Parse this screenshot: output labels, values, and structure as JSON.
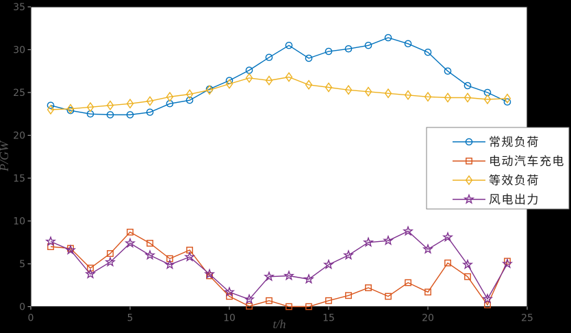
{
  "figure": {
    "background": "#000000",
    "plot_background": "#ffffff",
    "spine_color": "#1a1a1a",
    "tick_mark_color": "#999999",
    "tick_label_color": "#646464",
    "axis_label_color": "#585858",
    "legend_border_color": "#808080",
    "legend_background": "#ffffff"
  },
  "chart_data": {
    "type": "line",
    "title": "",
    "xlabel": "t/h",
    "ylabel": "P/GW",
    "xlim": [
      0,
      25
    ],
    "ylim": [
      0,
      35
    ],
    "x_ticks": [
      0,
      5,
      10,
      15,
      20,
      25
    ],
    "y_ticks": [
      0,
      5,
      10,
      15,
      20,
      25,
      30,
      35
    ],
    "grid": false,
    "legend_position": "right-middle",
    "x": [
      1,
      2,
      3,
      4,
      5,
      6,
      7,
      8,
      9,
      10,
      11,
      12,
      13,
      14,
      15,
      16,
      17,
      18,
      19,
      20,
      21,
      22,
      23,
      24
    ],
    "series": [
      {
        "name": "常规负荷",
        "color": "#0072BD",
        "marker": "circle",
        "values": [
          23.5,
          22.9,
          22.5,
          22.4,
          22.4,
          22.7,
          23.7,
          24.1,
          25.4,
          26.4,
          27.6,
          29.1,
          30.5,
          29.0,
          29.8,
          30.1,
          30.5,
          31.4,
          30.7,
          29.7,
          27.5,
          25.8,
          25.0,
          23.9
        ]
      },
      {
        "name": "电动汽车充电",
        "color": "#D95319",
        "marker": "square",
        "values": [
          7.0,
          6.8,
          4.5,
          6.2,
          8.7,
          7.4,
          5.6,
          6.6,
          3.6,
          1.2,
          0.05,
          0.7,
          0.0,
          0.0,
          0.7,
          1.3,
          2.2,
          1.2,
          2.8,
          1.7,
          5.1,
          3.5,
          0.2,
          5.3
        ]
      },
      {
        "name": "等效负荷",
        "color": "#EDB120",
        "marker": "diamond",
        "values": [
          23.0,
          23.1,
          23.3,
          23.5,
          23.7,
          24.0,
          24.5,
          24.8,
          25.3,
          26.0,
          26.7,
          26.4,
          26.8,
          25.9,
          25.6,
          25.3,
          25.1,
          24.9,
          24.7,
          24.5,
          24.4,
          24.4,
          24.2,
          24.3
        ]
      },
      {
        "name": "风电出力",
        "color": "#7E2F8E",
        "marker": "star",
        "values": [
          7.6,
          6.6,
          3.8,
          5.2,
          7.4,
          6.0,
          4.9,
          5.8,
          3.8,
          1.7,
          0.85,
          3.5,
          3.6,
          3.2,
          4.9,
          6.0,
          7.5,
          7.7,
          8.8,
          6.7,
          8.1,
          4.9,
          0.9,
          5.0
        ]
      }
    ]
  }
}
